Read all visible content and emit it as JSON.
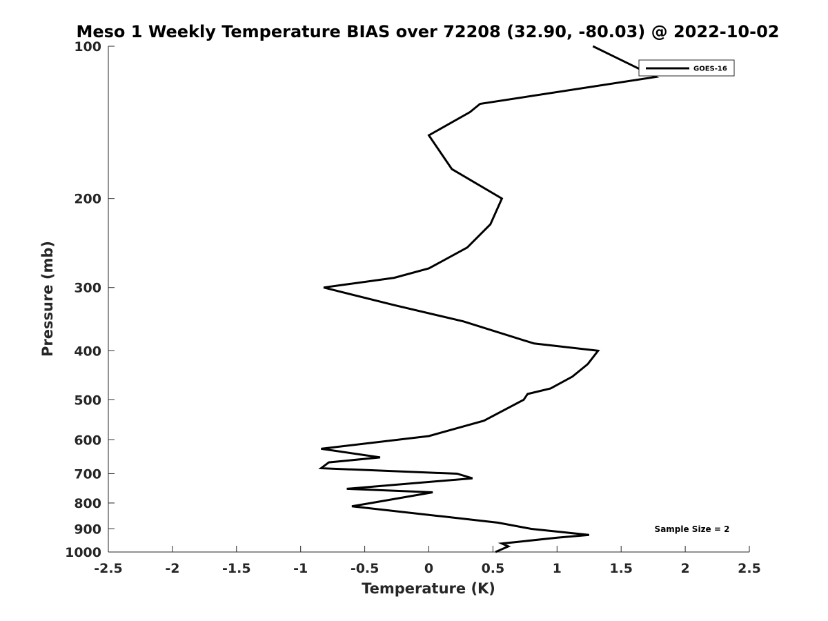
{
  "chart_data": {
    "type": "line",
    "title": "Meso 1 Weekly Temperature BIAS over 72208 (32.90, -80.03) @ 2022-10-02",
    "xlabel": "Temperature (K)",
    "ylabel": "Pressure (mb)",
    "xlim": [
      -2.5,
      2.5
    ],
    "ylim": [
      1000,
      100
    ],
    "y_scale": "log",
    "y_reversed": true,
    "grid": false,
    "legend_position": "top-right",
    "x_ticks": [
      -2.5,
      -2,
      -1.5,
      -1,
      -0.5,
      0,
      0.5,
      1,
      1.5,
      2,
      2.5
    ],
    "x_tick_labels": [
      "-2.5",
      "-2",
      "-1.5",
      "-1",
      "-0.5",
      "0",
      "0.5",
      "1",
      "1.5",
      "2",
      "2.5"
    ],
    "y_ticks": [
      100,
      200,
      300,
      400,
      500,
      600,
      700,
      800,
      900,
      1000
    ],
    "y_tick_labels": [
      "100",
      "200",
      "300",
      "400",
      "500",
      "600",
      "700",
      "800",
      "900",
      "1000"
    ],
    "series": [
      {
        "name": "GOES-16",
        "color": "#000000",
        "points": [
          [
            1.28,
            100
          ],
          [
            1.77,
            115
          ],
          [
            0.4,
            130
          ],
          [
            0.32,
            135
          ],
          [
            0.0,
            150
          ],
          [
            0.18,
            175
          ],
          [
            0.57,
            200
          ],
          [
            0.48,
            225
          ],
          [
            0.3,
            250
          ],
          [
            0.0,
            275
          ],
          [
            -0.27,
            287
          ],
          [
            -0.82,
            300
          ],
          [
            -0.27,
            325
          ],
          [
            0.27,
            350
          ],
          [
            0.82,
            387
          ],
          [
            1.32,
            400
          ],
          [
            1.24,
            425
          ],
          [
            1.12,
            450
          ],
          [
            0.95,
            475
          ],
          [
            0.77,
            487
          ],
          [
            0.74,
            500
          ],
          [
            0.43,
            550
          ],
          [
            0.0,
            590
          ],
          [
            -0.84,
            625
          ],
          [
            -0.38,
            650
          ],
          [
            -0.78,
            665
          ],
          [
            -0.84,
            683
          ],
          [
            0.22,
            700
          ],
          [
            0.34,
            715
          ],
          [
            -0.64,
            750
          ],
          [
            0.03,
            762
          ],
          [
            -0.45,
            800
          ],
          [
            -0.6,
            812
          ],
          [
            0.1,
            850
          ],
          [
            0.54,
            875
          ],
          [
            0.8,
            900
          ],
          [
            1.25,
            925
          ],
          [
            1.0,
            937
          ],
          [
            0.57,
            962
          ],
          [
            0.62,
            975
          ],
          [
            0.52,
            1000
          ]
        ]
      }
    ],
    "annotations": [
      {
        "text": "Sample Size = 2",
        "position": "bottom-right"
      }
    ]
  }
}
